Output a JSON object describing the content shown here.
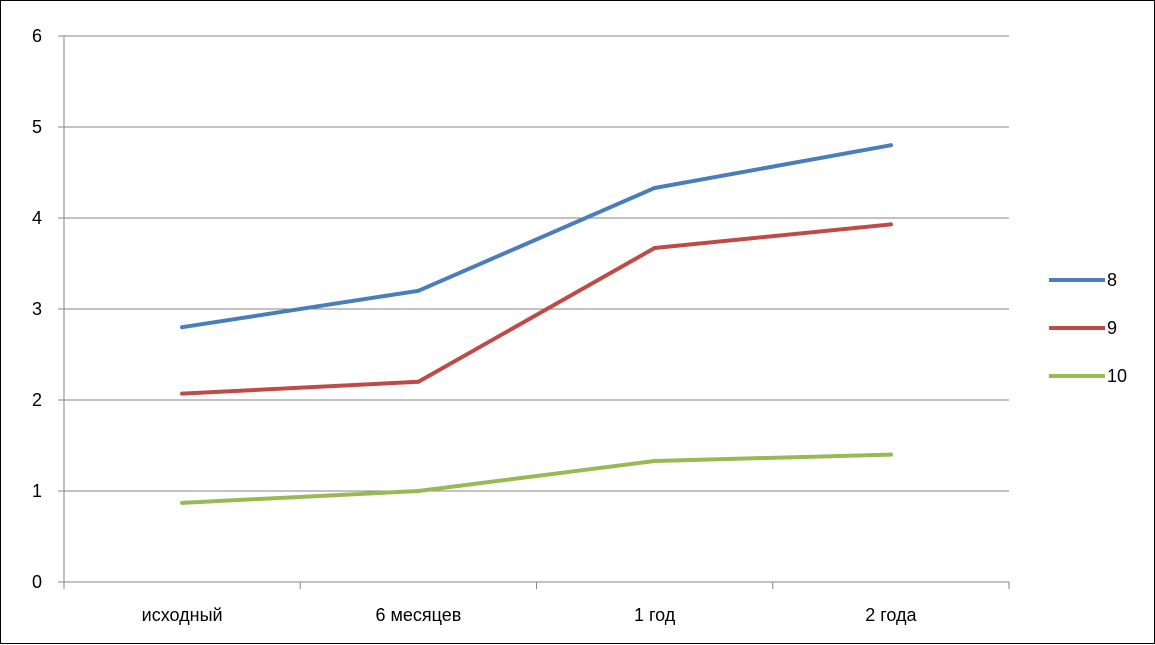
{
  "chart_data": {
    "type": "line",
    "categories": [
      "исходный",
      "6 месяцев",
      "1 год",
      "2 года"
    ],
    "series": [
      {
        "name": "8",
        "values": [
          2.8,
          3.2,
          4.33,
          4.8
        ],
        "color": "#4a7ebb"
      },
      {
        "name": "9",
        "values": [
          2.07,
          2.2,
          3.67,
          3.93
        ],
        "color": "#be4b48"
      },
      {
        "name": "10",
        "values": [
          0.87,
          1.0,
          1.33,
          1.4
        ],
        "color": "#98b954"
      }
    ],
    "ylim": [
      0,
      6
    ],
    "yticks": [
      0,
      1,
      2,
      3,
      4,
      5,
      6
    ],
    "grid": true,
    "legend": "right"
  }
}
